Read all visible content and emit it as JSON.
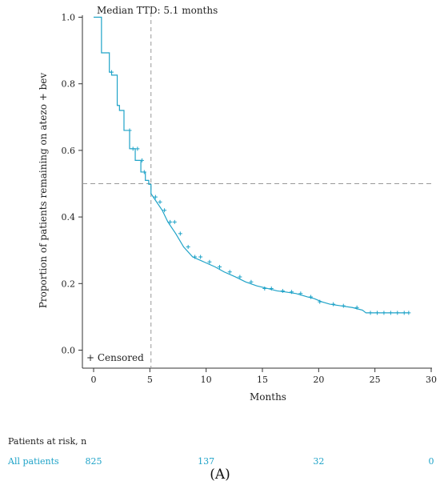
{
  "colors": {
    "curve": "#1fa3c8",
    "risk_text": "#1fa3c8",
    "axis": "#333333",
    "reference": "#999999"
  },
  "chart_data": {
    "type": "line",
    "title": "",
    "xlabel": "Months",
    "ylabel": "Proportion of patients remaining on atezo + bev",
    "xlim": [
      -1,
      30
    ],
    "ylim": [
      -0.05,
      1.0
    ],
    "xticks": [
      0,
      5,
      10,
      15,
      20,
      25,
      30
    ],
    "xtick_labels": [
      "0",
      "5",
      "10",
      "15",
      "20",
      "25",
      "30"
    ],
    "yticks": [
      0.0,
      0.2,
      0.4,
      0.6,
      0.8,
      1.0
    ],
    "ytick_labels": [
      "0.0",
      "0.2",
      "0.4",
      "0.6",
      "0.8",
      "1.0"
    ],
    "grid": false,
    "median_annotation": "Median TTD: 5.1 months",
    "median_x": 5.1,
    "median_y": 0.5,
    "censored_legend": "+ Censored",
    "series": [
      {
        "x": [
          0,
          0.7,
          0.7,
          1.4,
          1.4,
          1.6,
          1.6,
          2.1,
          2.1,
          2.3,
          2.3,
          2.7,
          2.7,
          3.2,
          3.2,
          3.7,
          3.7,
          4.2,
          4.2,
          4.6,
          4.6,
          4.9,
          4.9,
          5.1,
          5.1,
          5.3,
          5.6,
          6.1,
          6.6,
          7.3,
          8.0,
          8.8,
          9.8,
          10.8,
          11.6,
          12.6,
          13.5,
          14.5,
          15.5,
          16.3,
          17.0,
          18.0,
          19.0,
          19.6,
          20.3,
          21.0,
          22.0,
          23.0,
          23.9,
          24.2,
          25.0,
          26.0,
          27.0,
          28.0
        ],
        "y": [
          1.0,
          1.0,
          0.893,
          0.893,
          0.835,
          0.835,
          0.826,
          0.826,
          0.735,
          0.735,
          0.72,
          0.72,
          0.66,
          0.66,
          0.605,
          0.605,
          0.57,
          0.57,
          0.535,
          0.535,
          0.51,
          0.51,
          0.498,
          0.498,
          0.47,
          0.46,
          0.445,
          0.42,
          0.385,
          0.35,
          0.31,
          0.28,
          0.265,
          0.25,
          0.235,
          0.22,
          0.205,
          0.193,
          0.185,
          0.178,
          0.175,
          0.17,
          0.16,
          0.155,
          0.145,
          0.138,
          0.133,
          0.128,
          0.12,
          0.112,
          0.112,
          0.112,
          0.112,
          0.112
        ]
      }
    ],
    "censor_marks_x": [
      1.6,
      3.2,
      3.5,
      3.9,
      4.3,
      4.5,
      5.5,
      5.9,
      6.3,
      6.8,
      7.2,
      7.7,
      8.4,
      9.0,
      9.5,
      10.3,
      11.2,
      12.1,
      13.0,
      14.0,
      15.2,
      15.8,
      16.8,
      17.6,
      18.4,
      19.3,
      20.1,
      21.3,
      22.2,
      23.4,
      24.6,
      25.2,
      25.8,
      26.4,
      27.0,
      27.6,
      28.0
    ],
    "censor_marks_y": [
      0.835,
      0.66,
      0.605,
      0.605,
      0.57,
      0.535,
      0.46,
      0.445,
      0.42,
      0.385,
      0.385,
      0.35,
      0.31,
      0.28,
      0.28,
      0.265,
      0.25,
      0.235,
      0.22,
      0.205,
      0.185,
      0.185,
      0.178,
      0.175,
      0.17,
      0.16,
      0.145,
      0.138,
      0.133,
      0.128,
      0.112,
      0.112,
      0.112,
      0.112,
      0.112,
      0.112,
      0.112
    ]
  },
  "risk_table": {
    "title": "Patients at risk, n",
    "rows": [
      {
        "label": "All patients",
        "times": [
          0,
          10,
          20,
          30
        ],
        "values": [
          "825",
          "137",
          "32",
          "0"
        ]
      }
    ]
  },
  "panel_label": "(A)"
}
